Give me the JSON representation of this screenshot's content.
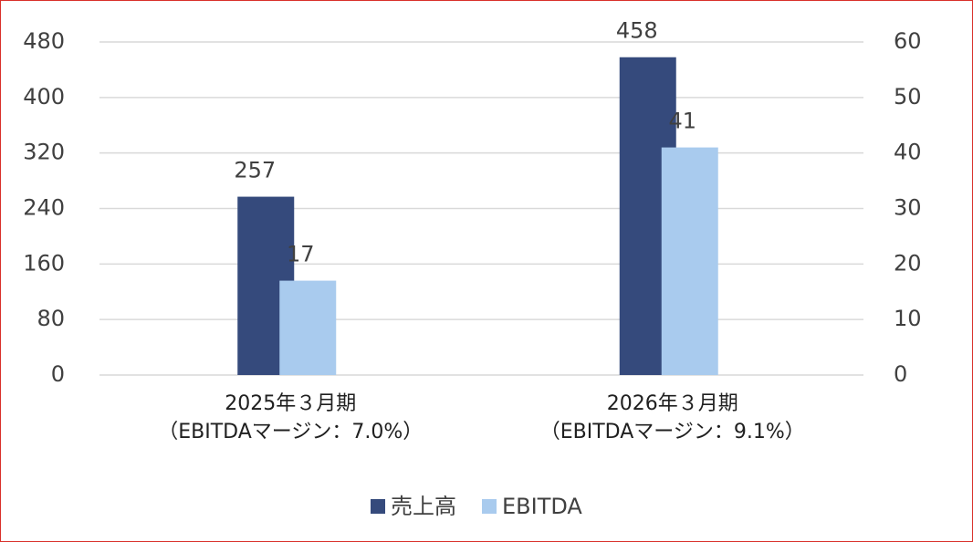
{
  "chart_data": {
    "type": "bar",
    "categories": [
      "2025年３月期\n（EBITDAマージン：7.0%）",
      "2026年３月期\n（EBITDAマージン：9.1%）"
    ],
    "series": [
      {
        "name": "売上高",
        "color": "#354a7c",
        "values": [
          257,
          458
        ]
      },
      {
        "name": "EBITDA",
        "color": "#a9cbee",
        "values": [
          17,
          41
        ],
        "axis": "y2"
      }
    ],
    "ylim": [
      0,
      480
    ],
    "yticks": [
      0,
      80,
      160,
      240,
      320,
      400,
      480
    ],
    "y2lim": [
      0,
      60
    ],
    "y2ticks": [
      0,
      10,
      20,
      30,
      40,
      50,
      60
    ],
    "grid": true,
    "legend": "bottom"
  }
}
